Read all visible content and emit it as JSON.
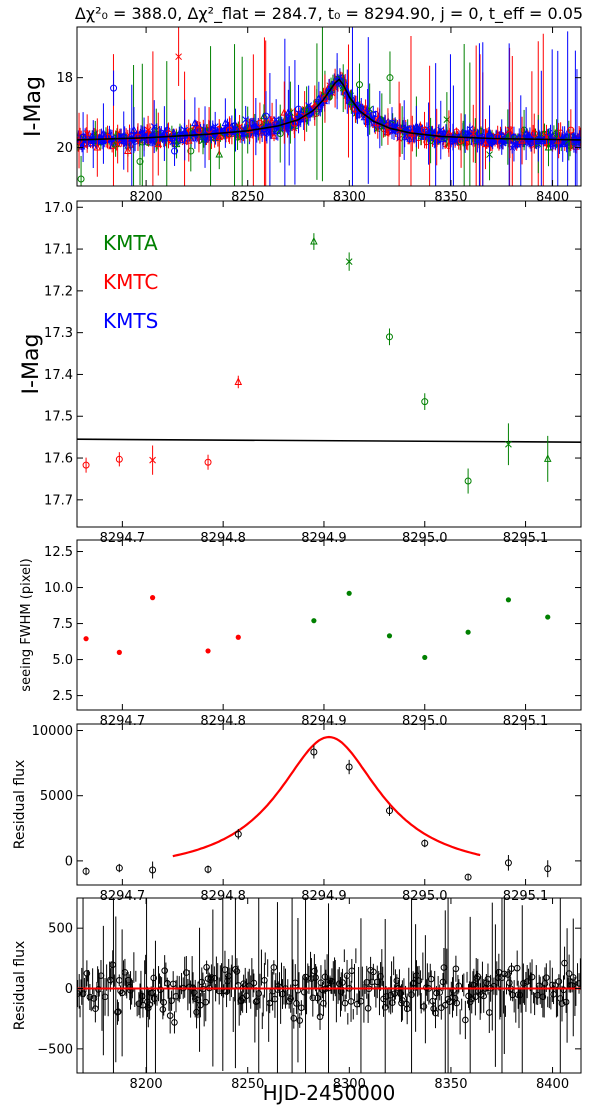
{
  "figure": {
    "title": "Δχ²₀ = 388.0, Δχ²_flat = 284.7, t₀ = 8294.90, j = 0, t_eff = 0.05",
    "xlabel": "HJD-2450000"
  },
  "colors": {
    "KMTA": "#008000",
    "KMTC": "#ff0000",
    "KMTS": "#0000ff",
    "model": "#000000",
    "fit": "#ff0000",
    "resid": "#000000"
  },
  "chart_data": [
    {
      "id": "p1",
      "type": "scatter",
      "ylabel": "I-Mag",
      "xlim": [
        8166,
        8414
      ],
      "ylim": [
        21.1,
        16.55
      ],
      "yinvert": true,
      "xticks": [
        8200,
        8250,
        8300,
        8350,
        8400
      ],
      "xtick_labels": [
        "8200",
        "8250",
        "8300",
        "8350",
        "8400"
      ],
      "yticks": [
        18,
        20
      ],
      "ytick_labels": [
        "18",
        "20"
      ],
      "grid": false,
      "model": {
        "x": [
          8166,
          8200,
          8230,
          8250,
          8265,
          8275,
          8282,
          8287,
          8290,
          8293,
          8295,
          8297,
          8300,
          8305,
          8312,
          8320,
          8330,
          8345,
          8370,
          8414
        ],
        "y": [
          19.78,
          19.72,
          19.62,
          19.52,
          19.38,
          19.2,
          18.95,
          18.65,
          18.4,
          18.15,
          18.05,
          18.2,
          18.55,
          18.95,
          19.25,
          19.45,
          19.58,
          19.68,
          19.74,
          19.78
        ]
      },
      "series": [
        {
          "name": "KMTA",
          "x": [
            8168,
            8175,
            8185,
            8197,
            8205,
            8215,
            8222,
            8228,
            8236,
            8245,
            8250,
            8258,
            8266,
            8271,
            8279,
            8284,
            8288,
            8291,
            8294,
            8297,
            8301,
            8305,
            8310,
            8316,
            8320,
            8326,
            8333,
            8340,
            8348,
            8356,
            8362,
            8369,
            8378,
            8386,
            8393,
            8398,
            8402,
            8408
          ],
          "y": [
            20.9,
            19.6,
            19.9,
            20.4,
            19.5,
            19.9,
            20.1,
            19.8,
            20.2,
            19.7,
            19.5,
            19.1,
            19.6,
            19.0,
            18.9,
            18.7,
            18.5,
            18.3,
            18.05,
            18.3,
            18.7,
            18.2,
            18.9,
            19.2,
            18.0,
            19.5,
            19.4,
            19.8,
            19.2,
            19.6,
            19.8,
            20.2,
            19.7,
            19.5,
            19.9,
            20.0,
            19.6,
            19.8
          ]
        },
        {
          "name": "KMTC",
          "x": [
            8167,
            8171,
            8176,
            8181,
            8186,
            8191,
            8196,
            8201,
            8206,
            8211,
            8216,
            8221,
            8226,
            8231,
            8236,
            8241,
            8246,
            8251,
            8256,
            8262,
            8268,
            8273,
            8278,
            8283,
            8288,
            8293,
            8298,
            8303,
            8308,
            8314,
            8319,
            8325,
            8331,
            8337,
            8343,
            8349,
            8355,
            8361,
            8367,
            8373,
            8379,
            8385,
            8391,
            8397,
            8403,
            8409
          ],
          "y": [
            19.8,
            19.6,
            20.0,
            19.7,
            19.9,
            20.1,
            19.7,
            19.5,
            19.9,
            19.6,
            17.4,
            19.8,
            19.5,
            19.6,
            19.7,
            19.5,
            19.4,
            19.5,
            19.3,
            19.2,
            19.0,
            19.3,
            19.1,
            18.8,
            18.6,
            18.3,
            18.4,
            18.9,
            19.0,
            19.3,
            19.4,
            19.5,
            19.6,
            19.5,
            19.7,
            19.6,
            19.8,
            19.6,
            19.9,
            19.7,
            19.5,
            19.8,
            19.6,
            19.7,
            19.8,
            19.5
          ]
        },
        {
          "name": "KMTS",
          "x": [
            8169,
            8174,
            8179,
            8184,
            8189,
            8194,
            8199,
            8204,
            8209,
            8214,
            8219,
            8224,
            8229,
            8234,
            8239,
            8244,
            8249,
            8254,
            8259,
            8264,
            8270,
            8275,
            8280,
            8285,
            8290,
            8294,
            8299,
            8304,
            8309,
            8315,
            8321,
            8327,
            8333,
            8339,
            8345,
            8351,
            8357,
            8363,
            8369,
            8375,
            8381,
            8387,
            8393,
            8399,
            8405
          ],
          "y": [
            19.7,
            19.9,
            19.6,
            18.3,
            19.8,
            19.5,
            19.7,
            19.4,
            19.6,
            20.1,
            19.5,
            19.3,
            19.7,
            19.4,
            19.3,
            19.5,
            19.2,
            19.4,
            19.1,
            19.2,
            19.0,
            18.9,
            18.8,
            18.6,
            18.4,
            18.1,
            18.4,
            18.8,
            19.0,
            19.2,
            19.3,
            19.5,
            19.4,
            19.6,
            19.5,
            19.7,
            19.6,
            19.8,
            19.6,
            19.7,
            19.9,
            19.6,
            19.8,
            19.7,
            19.9
          ]
        }
      ]
    },
    {
      "id": "p2",
      "type": "scatter",
      "ylabel": "I-Mag",
      "xlim": [
        8294.655,
        8295.155
      ],
      "ylim": [
        17.765,
        16.985
      ],
      "yinvert": true,
      "xticks": [
        8294.7,
        8294.8,
        8294.9,
        8295.0,
        8295.1
      ],
      "xtick_labels": [
        "8294.7",
        "8294.8",
        "8294.9",
        "8295.0",
        "8295.1"
      ],
      "yticks": [
        17.0,
        17.1,
        17.2,
        17.3,
        17.4,
        17.5,
        17.6,
        17.7
      ],
      "ytick_labels": [
        "17.0",
        "17.1",
        "17.2",
        "17.3",
        "17.4",
        "17.5",
        "17.6",
        "17.7"
      ],
      "legend": [
        "KMTA",
        "KMTC",
        "KMTS"
      ],
      "legend_position": "upper-left",
      "model": {
        "x": [
          8294.655,
          8295.155
        ],
        "y": [
          17.555,
          17.562
        ]
      },
      "series": [
        {
          "name": "KMTC",
          "x": [
            8294.664,
            8294.697,
            8294.73,
            8294.785,
            8294.815
          ],
          "y": [
            17.617,
            17.603,
            17.605,
            17.61,
            17.418
          ],
          "err": [
            0.018,
            0.017,
            0.035,
            0.018,
            0.015
          ],
          "marker": [
            "o",
            "o",
            "x",
            "o",
            "^"
          ]
        },
        {
          "name": "KMTA",
          "x": [
            8294.89,
            8294.925,
            8294.965,
            8295.0,
            8295.043,
            8295.083,
            8295.122
          ],
          "y": [
            17.082,
            17.13,
            17.31,
            17.465,
            17.655,
            17.567,
            17.602
          ],
          "err": [
            0.02,
            0.022,
            0.02,
            0.02,
            0.03,
            0.05,
            0.055
          ],
          "marker": [
            "^",
            "x",
            "o",
            "o",
            "o",
            "x",
            "^"
          ]
        }
      ]
    },
    {
      "id": "p3",
      "type": "scatter",
      "ylabel": "seeing FWHM (pixel)",
      "xlim": [
        8294.655,
        8295.155
      ],
      "ylim": [
        1.5,
        13.3
      ],
      "xticks": [
        8294.7,
        8294.8,
        8294.9,
        8295.0,
        8295.1
      ],
      "xtick_labels": [
        "8294.7",
        "8294.8",
        "8294.9",
        "8295.0",
        "8295.1"
      ],
      "yticks": [
        2.5,
        5.0,
        7.5,
        10.0,
        12.5
      ],
      "ytick_labels": [
        "2.5",
        "5.0",
        "7.5",
        "10.0",
        "12.5"
      ],
      "series": [
        {
          "name": "KMTC",
          "x": [
            8294.664,
            8294.697,
            8294.73,
            8294.785,
            8294.815
          ],
          "y": [
            6.45,
            5.5,
            9.3,
            5.6,
            6.55
          ]
        },
        {
          "name": "KMTA",
          "x": [
            8294.89,
            8294.925,
            8294.965,
            8295.0,
            8295.043,
            8295.083,
            8295.122
          ],
          "y": [
            7.7,
            9.6,
            6.65,
            5.15,
            6.9,
            9.15,
            7.95
          ]
        }
      ]
    },
    {
      "id": "p4",
      "type": "scatter",
      "ylabel": "Residual flux",
      "xlim": [
        8294.655,
        8295.155
      ],
      "ylim": [
        -1850,
        10500
      ],
      "xticks": [
        8294.7,
        8294.8,
        8294.9,
        8295.0,
        8295.1
      ],
      "xtick_labels": [
        "8294.7",
        "8294.8",
        "8294.9",
        "8295.0",
        "8295.1"
      ],
      "yticks": [
        0,
        5000,
        10000
      ],
      "ytick_labels": [
        "0",
        "5000",
        "10000"
      ],
      "fit": {
        "x0": 8294.905,
        "amp": 10600,
        "w": 0.062,
        "base": -1100,
        "xmin": 8294.75,
        "xmax": 8295.055
      },
      "points": {
        "x": [
          8294.664,
          8294.697,
          8294.73,
          8294.785,
          8294.815,
          8294.89,
          8294.925,
          8294.965,
          8295.0,
          8295.043,
          8295.083,
          8295.122
        ],
        "y": [
          -800,
          -550,
          -700,
          -650,
          2050,
          8350,
          7200,
          3850,
          1350,
          -1250,
          -150,
          -600
        ],
        "err": [
          300,
          320,
          650,
          300,
          400,
          500,
          550,
          400,
          300,
          250,
          600,
          650
        ]
      }
    },
    {
      "id": "p5",
      "type": "scatter",
      "ylabel": "Residual flux",
      "xlim": [
        8166,
        8414
      ],
      "ylim": [
        -700,
        750
      ],
      "xticks": [
        8200,
        8250,
        8300,
        8350,
        8400
      ],
      "xtick_labels": [
        "8200",
        "8250",
        "8300",
        "8350",
        "8400"
      ],
      "yticks": [
        -500,
        0,
        500
      ],
      "ytick_labels": [
        "−500",
        "0",
        "500"
      ],
      "zero_line": 0
    }
  ]
}
